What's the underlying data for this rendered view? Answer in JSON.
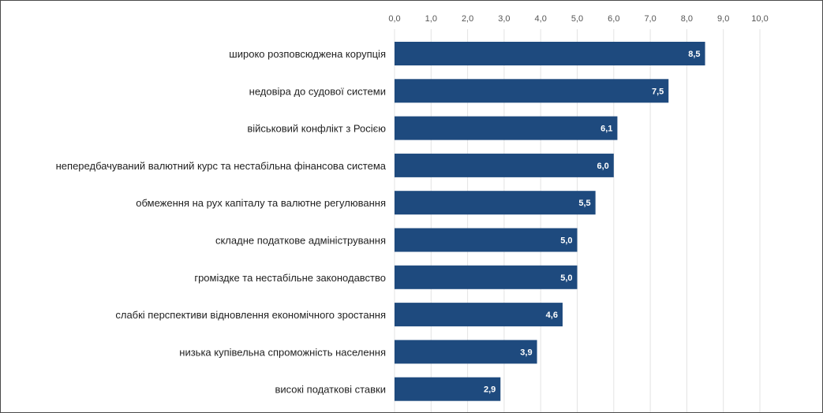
{
  "chart_data": {
    "type": "bar",
    "orientation": "horizontal",
    "title": "",
    "xlabel": "",
    "ylabel": "",
    "xlim": [
      0,
      10
    ],
    "ticks": [
      "0,0",
      "1,0",
      "2,0",
      "3,0",
      "4,0",
      "5,0",
      "6,0",
      "7,0",
      "8,0",
      "9,0",
      "10,0"
    ],
    "tick_values": [
      0,
      1,
      2,
      3,
      4,
      5,
      6,
      7,
      8,
      9,
      10
    ],
    "axis_position": "top",
    "grid": true,
    "legend": "none",
    "categories": [
      "широко розповсюджена корупція",
      "недовіра до судової системи",
      "військовий конфлікт з Росією",
      "непередбачуваний валютний курс та нестабільна фінансова система",
      "обмеження на рух капіталу та валютне регулювання",
      "складне податкове адміністрування",
      "громіздке та нестабільне законодавство",
      "слабкі перспективи відновлення економічного зростання",
      "низька купівельна спроможність населення",
      "високі податкові ставки"
    ],
    "values": [
      8.5,
      7.5,
      6.1,
      6.0,
      5.5,
      5.0,
      5.0,
      4.6,
      3.9,
      2.9
    ],
    "value_labels": [
      "8,5",
      "7,5",
      "6,1",
      "6,0",
      "5,5",
      "5,0",
      "5,0",
      "4,6",
      "3,9",
      "2,9"
    ],
    "colors": {
      "bar": "#1e4a7e",
      "grid": "#e3e3e3",
      "value_text": "#ffffff"
    }
  }
}
